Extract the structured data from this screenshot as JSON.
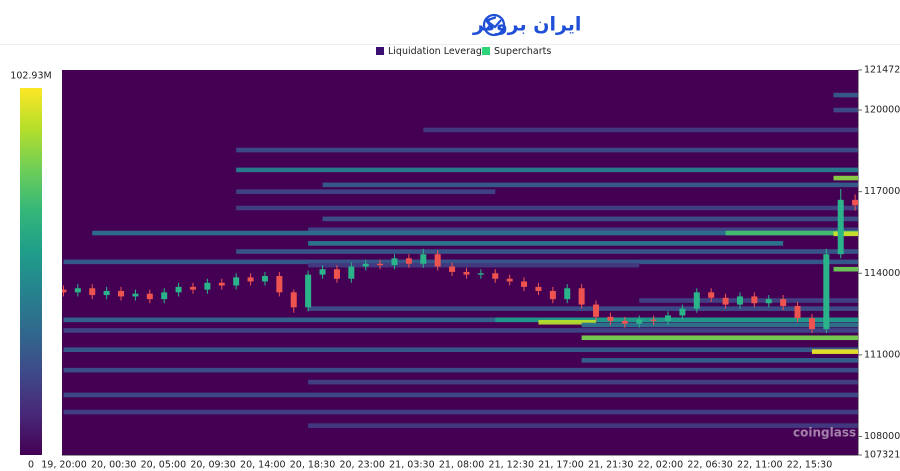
{
  "header": {
    "brand": "ایران بروکر"
  },
  "chart_data": {
    "type": "heatmap-candlestick",
    "legend": [
      {
        "name": "Liquidation Leverage",
        "color": "#3b0f6f"
      },
      {
        "name": "Supercharts",
        "color": "#2ed47a"
      }
    ],
    "watermark": "coinglass",
    "x_labels": [
      "19, 20:00",
      "20, 00:30",
      "20, 05:00",
      "20, 09:30",
      "20, 14:00",
      "20, 18:30",
      "20, 23:00",
      "21, 03:30",
      "21, 08:00",
      "21, 12:30",
      "21, 17:00",
      "21, 21:30",
      "22, 02:00",
      "22, 06:30",
      "22, 11:00",
      "22, 15:30"
    ],
    "xlim": [
      -0.1,
      55.2
    ],
    "ylim": [
      107321,
      121472
    ],
    "yticks": [
      121472,
      120000,
      117000,
      114000,
      111000,
      108000,
      107321
    ],
    "zlim": [
      0,
      102.93
    ],
    "zticks": [
      {
        "value": 102.93,
        "label": "102.93M"
      },
      0
    ],
    "colorscale": "viridis",
    "up_color": "#2bb38a",
    "down_color": "#ef5350",
    "candles": {
      "open": [
        113400,
        113300,
        113450,
        113200,
        113350,
        113150,
        113250,
        113050,
        113300,
        113500,
        113400,
        113650,
        113550,
        113850,
        113700,
        113900,
        113300,
        112750,
        113950,
        114150,
        113800,
        114250,
        114350,
        114300,
        114550,
        114350,
        114700,
        114250,
        114050,
        113950,
        114000,
        113800,
        113700,
        113500,
        113350,
        113050,
        113450,
        112850,
        112400,
        112250,
        112150,
        112300,
        112250,
        112450,
        112700,
        113300,
        113100,
        112850,
        113150,
        112900,
        113050,
        112800,
        112350,
        111950,
        114700,
        116700
      ],
      "high": [
        113550,
        113600,
        113600,
        113500,
        113500,
        113400,
        113400,
        113450,
        113650,
        113650,
        113800,
        113800,
        114000,
        114000,
        114050,
        114050,
        113400,
        114100,
        114300,
        114300,
        114400,
        114500,
        114500,
        114700,
        114700,
        114900,
        114850,
        114400,
        114200,
        114150,
        114150,
        113950,
        113850,
        113650,
        113500,
        113600,
        113600,
        113000,
        112550,
        112400,
        112450,
        112450,
        112600,
        112850,
        113450,
        113450,
        113250,
        113300,
        113300,
        113200,
        113200,
        112950,
        112500,
        114900,
        117100,
        116900
      ],
      "low": [
        113150,
        113150,
        113050,
        113050,
        113000,
        113000,
        112900,
        112900,
        113150,
        113250,
        113250,
        113400,
        113400,
        113550,
        113550,
        113150,
        112550,
        112600,
        113800,
        113650,
        113650,
        114100,
        114150,
        114150,
        114200,
        114200,
        114100,
        113900,
        113800,
        113800,
        113650,
        113550,
        113350,
        113200,
        112900,
        112900,
        112700,
        112250,
        112100,
        112000,
        112000,
        112100,
        112100,
        112300,
        112550,
        112950,
        112700,
        112700,
        112750,
        112750,
        112650,
        112200,
        111800,
        111800,
        114550,
        116300
      ],
      "close": [
        113300,
        113450,
        113200,
        113350,
        113150,
        113250,
        113050,
        113300,
        113500,
        113400,
        113650,
        113550,
        113850,
        113700,
        113900,
        113300,
        112750,
        113950,
        114150,
        113800,
        114250,
        114350,
        114300,
        114550,
        114350,
        114700,
        114250,
        114050,
        113950,
        114000,
        113800,
        113700,
        113500,
        113350,
        113050,
        113450,
        112850,
        112400,
        112250,
        112150,
        112300,
        112250,
        112450,
        112700,
        113300,
        113100,
        112850,
        113150,
        112900,
        113050,
        112800,
        112350,
        111950,
        114700,
        116700,
        116500
      ]
    },
    "bands": [
      {
        "price": 119270,
        "from": 25,
        "to": 55.2,
        "value": 18
      },
      {
        "price": 118530,
        "from": 12,
        "to": 55.2,
        "value": 24
      },
      {
        "price": 117800,
        "from": 12,
        "to": 55.2,
        "value": 45
      },
      {
        "price": 117250,
        "from": 18,
        "to": 55.2,
        "value": 30
      },
      {
        "price": 117000,
        "from": 12,
        "to": 30,
        "value": 22
      },
      {
        "price": 116400,
        "from": 12,
        "to": 55.2,
        "value": 20
      },
      {
        "price": 116000,
        "from": 18,
        "to": 55.2,
        "value": 26
      },
      {
        "price": 115600,
        "from": 17,
        "to": 55.2,
        "value": 22
      },
      {
        "price": 115480,
        "from": 2,
        "to": 55.2,
        "value": 38
      },
      {
        "price": 115480,
        "from": 46,
        "to": 55.2,
        "value": 72
      },
      {
        "price": 115100,
        "from": 17,
        "to": 50,
        "value": 42
      },
      {
        "price": 114800,
        "from": 12,
        "to": 55.2,
        "value": 28
      },
      {
        "price": 114420,
        "from": 0,
        "to": 55.2,
        "value": 30
      },
      {
        "price": 114300,
        "from": 17,
        "to": 40,
        "value": 18
      },
      {
        "price": 113000,
        "from": 40,
        "to": 55.2,
        "value": 20
      },
      {
        "price": 112700,
        "from": 17,
        "to": 55.2,
        "value": 25
      },
      {
        "price": 112290,
        "from": 0,
        "to": 55.2,
        "value": 34
      },
      {
        "price": 112290,
        "from": 30,
        "to": 55.2,
        "value": 55
      },
      {
        "price": 112200,
        "from": 33,
        "to": 37,
        "value": 92
      },
      {
        "price": 112100,
        "from": 36,
        "to": 55.2,
        "value": 40
      },
      {
        "price": 111900,
        "from": 0,
        "to": 55.2,
        "value": 22
      },
      {
        "price": 111630,
        "from": 36,
        "to": 55.2,
        "value": 82
      },
      {
        "price": 111190,
        "from": 0,
        "to": 55.2,
        "value": 30
      },
      {
        "price": 111120,
        "from": 52,
        "to": 55.2,
        "value": 100
      },
      {
        "price": 110800,
        "from": 36,
        "to": 55.2,
        "value": 32
      },
      {
        "price": 110440,
        "from": 0,
        "to": 55.2,
        "value": 26
      },
      {
        "price": 110000,
        "from": 17,
        "to": 55.2,
        "value": 20
      },
      {
        "price": 109530,
        "from": 0,
        "to": 55.2,
        "value": 24
      },
      {
        "price": 108900,
        "from": 0,
        "to": 55.2,
        "value": 20
      },
      {
        "price": 108400,
        "from": 17,
        "to": 55.2,
        "value": 18
      },
      {
        "price": 120550,
        "from": 53.5,
        "to": 55.2,
        "value": 30
      },
      {
        "price": 120000,
        "from": 53.5,
        "to": 55.2,
        "value": 24
      },
      {
        "price": 117500,
        "from": 53.5,
        "to": 55.2,
        "value": 85
      },
      {
        "price": 115450,
        "from": 53.5,
        "to": 55.2,
        "value": 95
      },
      {
        "price": 114150,
        "from": 53.5,
        "to": 55.2,
        "value": 80
      }
    ]
  }
}
